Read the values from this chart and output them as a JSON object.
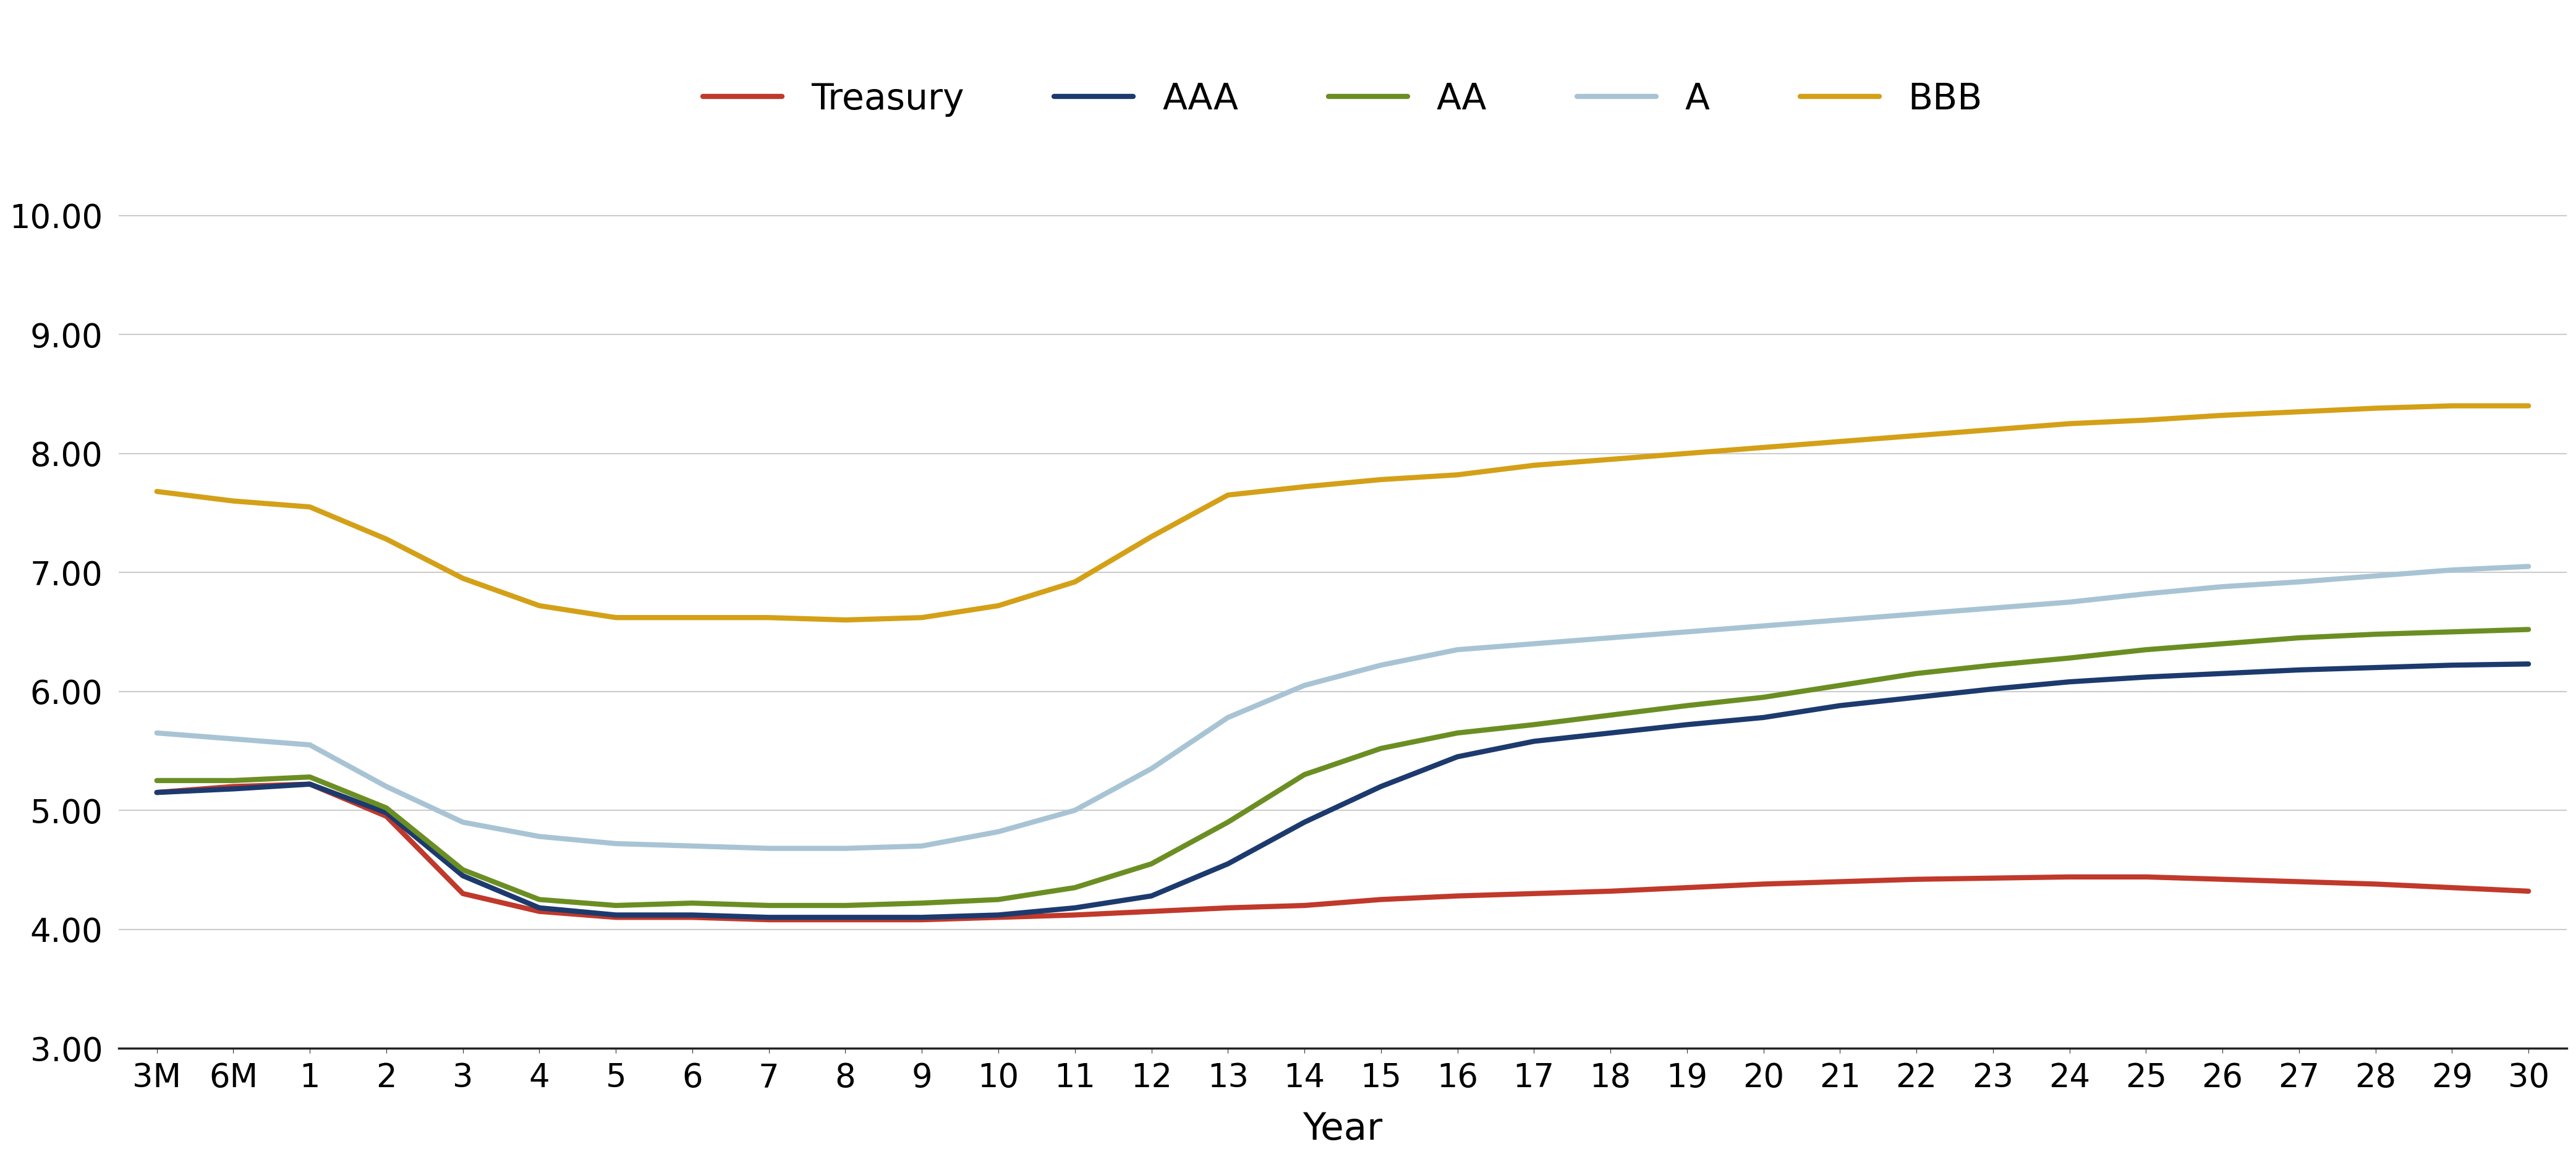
{
  "xlabel": "Year",
  "ylabel": "",
  "x_labels": [
    "3M",
    "6M",
    "1",
    "2",
    "3",
    "4",
    "5",
    "6",
    "7",
    "8",
    "9",
    "10",
    "11",
    "12",
    "13",
    "14",
    "15",
    "16",
    "17",
    "18",
    "19",
    "20",
    "21",
    "22",
    "23",
    "24",
    "25",
    "26",
    "27",
    "28",
    "29",
    "30"
  ],
  "ylim": [
    3.0,
    10.5
  ],
  "yticks": [
    3.0,
    4.0,
    5.0,
    6.0,
    7.0,
    8.0,
    9.0,
    10.0
  ],
  "series": {
    "Treasury": {
      "color": "#C0392B",
      "linewidth": 6.0,
      "values": [
        5.15,
        5.2,
        5.22,
        4.95,
        4.3,
        4.15,
        4.1,
        4.1,
        4.08,
        4.08,
        4.08,
        4.1,
        4.12,
        4.15,
        4.18,
        4.2,
        4.25,
        4.28,
        4.3,
        4.32,
        4.35,
        4.38,
        4.4,
        4.42,
        4.43,
        4.44,
        4.44,
        4.42,
        4.4,
        4.38,
        4.35,
        4.32
      ]
    },
    "AAA": {
      "color": "#1C3A6E",
      "linewidth": 6.0,
      "values": [
        5.15,
        5.18,
        5.22,
        4.98,
        4.45,
        4.18,
        4.12,
        4.12,
        4.1,
        4.1,
        4.1,
        4.12,
        4.18,
        4.28,
        4.55,
        4.9,
        5.2,
        5.45,
        5.58,
        5.65,
        5.72,
        5.78,
        5.88,
        5.95,
        6.02,
        6.08,
        6.12,
        6.15,
        6.18,
        6.2,
        6.22,
        6.23
      ]
    },
    "AA": {
      "color": "#6B8E23",
      "linewidth": 6.0,
      "values": [
        5.25,
        5.25,
        5.28,
        5.02,
        4.5,
        4.25,
        4.2,
        4.22,
        4.2,
        4.2,
        4.22,
        4.25,
        4.35,
        4.55,
        4.9,
        5.3,
        5.52,
        5.65,
        5.72,
        5.8,
        5.88,
        5.95,
        6.05,
        6.15,
        6.22,
        6.28,
        6.35,
        6.4,
        6.45,
        6.48,
        6.5,
        6.52
      ]
    },
    "A": {
      "color": "#A8C4D4",
      "linewidth": 6.0,
      "values": [
        5.65,
        5.6,
        5.55,
        5.2,
        4.9,
        4.78,
        4.72,
        4.7,
        4.68,
        4.68,
        4.7,
        4.82,
        5.0,
        5.35,
        5.78,
        6.05,
        6.22,
        6.35,
        6.4,
        6.45,
        6.5,
        6.55,
        6.6,
        6.65,
        6.7,
        6.75,
        6.82,
        6.88,
        6.92,
        6.97,
        7.02,
        7.05
      ]
    },
    "BBB": {
      "color": "#D4A017",
      "linewidth": 6.0,
      "values": [
        7.68,
        7.6,
        7.55,
        7.28,
        6.95,
        6.72,
        6.62,
        6.62,
        6.62,
        6.6,
        6.62,
        6.72,
        6.92,
        7.3,
        7.65,
        7.72,
        7.78,
        7.82,
        7.9,
        7.95,
        8.0,
        8.05,
        8.1,
        8.15,
        8.2,
        8.25,
        8.28,
        8.32,
        8.35,
        8.38,
        8.4,
        8.4
      ]
    }
  },
  "legend_order": [
    "Treasury",
    "AAA",
    "AA",
    "A",
    "BBB"
  ],
  "background_color": "#ffffff",
  "grid_color": "#cccccc",
  "tick_fontsize": 38,
  "legend_fontsize": 42,
  "xlabel_fontsize": 44
}
